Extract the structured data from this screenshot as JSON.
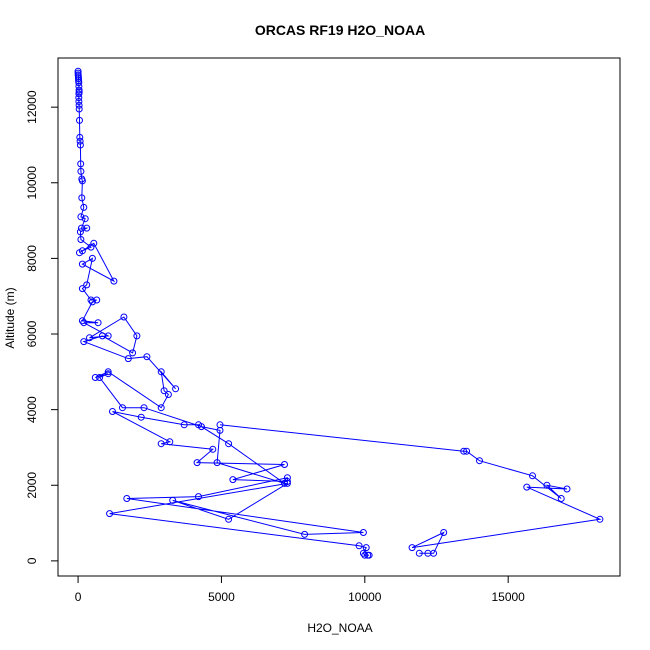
{
  "chart_data": {
    "type": "line",
    "title": "ORCAS RF19 H2O_NOAA",
    "xlabel": "H2O_NOAA",
    "ylabel": "Altitude (m)",
    "xlim": [
      -700,
      18900
    ],
    "ylim": [
      -400,
      13300
    ],
    "xticks": [
      0,
      5000,
      10000,
      15000
    ],
    "yticks": [
      0,
      2000,
      4000,
      6000,
      8000,
      10000,
      12000
    ],
    "grid": false,
    "colors": {
      "series": "#0000ff",
      "axis": "#000000"
    },
    "series": [
      {
        "points": [
          [
            0,
            12950
          ],
          [
            0,
            12900
          ],
          [
            5,
            12850
          ],
          [
            10,
            12800
          ],
          [
            15,
            12750
          ],
          [
            20,
            12700
          ],
          [
            25,
            12650
          ],
          [
            30,
            12550
          ],
          [
            35,
            12450
          ],
          [
            40,
            12400
          ],
          [
            30,
            12350
          ],
          [
            25,
            12250
          ],
          [
            30,
            12150
          ],
          [
            35,
            12050
          ],
          [
            40,
            11950
          ],
          [
            50,
            11650
          ],
          [
            60,
            11200
          ],
          [
            70,
            11100
          ],
          [
            80,
            11000
          ],
          [
            90,
            10500
          ],
          [
            100,
            10300
          ],
          [
            130,
            10100
          ],
          [
            150,
            10050
          ],
          [
            130,
            9600
          ],
          [
            200,
            9350
          ],
          [
            100,
            9100
          ],
          [
            250,
            9050
          ],
          [
            120,
            8800
          ],
          [
            300,
            8800
          ],
          [
            80,
            8700
          ],
          [
            100,
            8500
          ],
          [
            450,
            8300
          ],
          [
            150,
            8200
          ],
          [
            50,
            8150
          ],
          [
            550,
            8400
          ],
          [
            1250,
            7400
          ],
          [
            150,
            7850
          ],
          [
            500,
            8000
          ],
          [
            300,
            7300
          ],
          [
            150,
            7200
          ],
          [
            450,
            6900
          ],
          [
            650,
            6900
          ],
          [
            500,
            6850
          ],
          [
            150,
            6350
          ],
          [
            700,
            6300
          ],
          [
            200,
            6300
          ],
          [
            1050,
            5950
          ],
          [
            400,
            5900
          ],
          [
            1600,
            6450
          ],
          [
            2050,
            5950
          ],
          [
            1900,
            5500
          ],
          [
            850,
            5950
          ],
          [
            200,
            5800
          ],
          [
            1750,
            5350
          ],
          [
            2400,
            5400
          ],
          [
            3400,
            4550
          ],
          [
            2900,
            5000
          ],
          [
            3000,
            4500
          ],
          [
            3150,
            4400
          ],
          [
            2900,
            4050
          ],
          [
            1050,
            5000
          ],
          [
            600,
            4850
          ],
          [
            1050,
            4950
          ],
          [
            750,
            4850
          ],
          [
            1550,
            4050
          ],
          [
            2300,
            4050
          ],
          [
            4300,
            3550
          ],
          [
            4950,
            3450
          ],
          [
            4850,
            2600
          ],
          [
            7200,
            2050
          ],
          [
            5250,
            3100
          ],
          [
            4200,
            3600
          ],
          [
            3700,
            3600
          ],
          [
            2200,
            3800
          ],
          [
            1200,
            3950
          ],
          [
            3200,
            3150
          ],
          [
            2900,
            3100
          ],
          [
            4700,
            2950
          ],
          [
            4150,
            2600
          ],
          [
            7200,
            2550
          ],
          [
            5400,
            2150
          ],
          [
            7300,
            2100
          ],
          [
            7300,
            2200
          ],
          [
            4200,
            1700
          ],
          [
            1700,
            1650
          ],
          [
            9950,
            750
          ],
          [
            7900,
            700
          ],
          [
            3300,
            1600
          ],
          [
            5250,
            1100
          ],
          [
            7300,
            2050
          ],
          [
            1100,
            1250
          ],
          [
            9800,
            400
          ],
          [
            10050,
            350
          ],
          [
            9950,
            200
          ],
          [
            10000,
            150
          ],
          [
            10100,
            150
          ],
          [
            10150,
            150
          ]
        ]
      },
      {
        "points": [
          [
            4950,
            3600
          ],
          [
            13450,
            2900
          ],
          [
            13550,
            2900
          ],
          [
            14000,
            2650
          ],
          [
            15850,
            2250
          ],
          [
            16850,
            1650
          ],
          [
            16350,
            2000
          ],
          [
            17050,
            1900
          ],
          [
            15650,
            1950
          ],
          [
            18200,
            1100
          ],
          [
            11650,
            350
          ],
          [
            12750,
            750
          ],
          [
            12400,
            200
          ],
          [
            12200,
            200
          ],
          [
            11900,
            200
          ]
        ]
      }
    ]
  }
}
